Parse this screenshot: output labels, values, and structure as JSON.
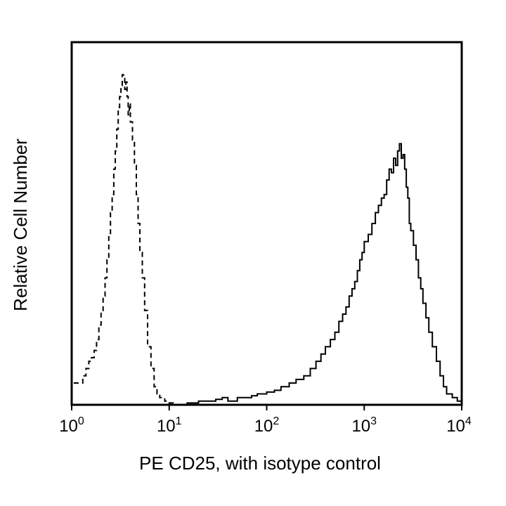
{
  "chart_data": {
    "type": "line",
    "title": "",
    "xlabel": "PE CD25, with isotype control",
    "ylabel": "Relative Cell Number",
    "x_scale": "log",
    "xlim": [
      1,
      10000
    ],
    "ylim": [
      0,
      100
    ],
    "grid": false,
    "legend": "none",
    "x_ticks": [
      {
        "base": "10",
        "exp": "0",
        "value": 1
      },
      {
        "base": "10",
        "exp": "1",
        "value": 10
      },
      {
        "base": "10",
        "exp": "2",
        "value": 100
      },
      {
        "base": "10",
        "exp": "3",
        "value": 1000
      },
      {
        "base": "10",
        "exp": "4",
        "value": 10000
      }
    ],
    "series": [
      {
        "style": "dashed",
        "color": "#000000",
        "x": [
          1.05,
          1.2,
          1.3,
          1.4,
          1.5,
          1.6,
          1.7,
          1.8,
          1.9,
          2.0,
          2.1,
          2.2,
          2.3,
          2.4,
          2.5,
          2.6,
          2.7,
          2.8,
          2.9,
          3.0,
          3.1,
          3.2,
          3.3,
          3.4,
          3.5,
          3.6,
          3.7,
          3.8,
          3.9,
          4.0,
          4.2,
          4.4,
          4.6,
          4.8,
          5.0,
          5.3,
          5.6,
          6.0,
          6.5,
          7.0,
          7.5,
          8.0,
          9.0,
          10.0,
          11.0
        ],
        "y": [
          6,
          6,
          8,
          10,
          12,
          13,
          15,
          18,
          22,
          26,
          30,
          35,
          40,
          47,
          53,
          58,
          65,
          70,
          76,
          82,
          85,
          88,
          91,
          90,
          87,
          89,
          85,
          80,
          83,
          78,
          73,
          66,
          58,
          50,
          42,
          35,
          26,
          16,
          10,
          5,
          3,
          2,
          1,
          0.5,
          0
        ]
      },
      {
        "style": "solid",
        "color": "#000000",
        "x": [
          15,
          20,
          25,
          30,
          35,
          40,
          50,
          60,
          70,
          80,
          100,
          120,
          140,
          170,
          200,
          240,
          280,
          320,
          360,
          400,
          450,
          500,
          550,
          600,
          650,
          700,
          750,
          800,
          850,
          900,
          950,
          1000,
          1100,
          1200,
          1300,
          1400,
          1500,
          1600,
          1700,
          1800,
          1900,
          2000,
          2100,
          2200,
          2300,
          2400,
          2500,
          2600,
          2700,
          2800,
          2900,
          3000,
          3200,
          3400,
          3600,
          3800,
          4000,
          4300,
          4600,
          5000,
          5500,
          6000,
          6500,
          7000,
          8000,
          9000,
          10000
        ],
        "y": [
          0.5,
          1,
          1,
          1.5,
          2,
          1,
          2,
          2,
          2.5,
          3,
          3.5,
          4,
          5,
          6,
          7,
          8,
          10,
          12,
          14,
          16,
          18,
          20,
          23,
          25,
          27,
          30,
          32,
          34,
          37,
          40,
          42,
          45,
          47,
          50,
          53,
          55,
          57,
          58,
          62,
          65,
          64,
          68,
          66,
          70,
          72,
          68,
          69,
          65,
          60,
          57,
          50,
          48,
          44,
          40,
          35,
          32,
          28,
          24,
          20,
          16,
          12,
          8,
          5,
          3,
          2,
          1,
          0
        ]
      }
    ]
  }
}
